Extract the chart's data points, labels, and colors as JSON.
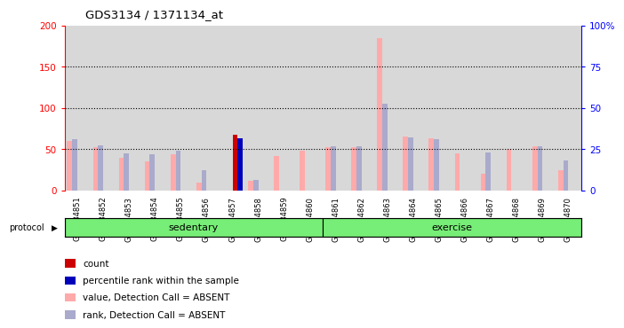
{
  "title": "GDS3134 / 1371134_at",
  "samples": [
    "GSM184851",
    "GSM184852",
    "GSM184853",
    "GSM184854",
    "GSM184855",
    "GSM184856",
    "GSM184857",
    "GSM184858",
    "GSM184859",
    "GSM184860",
    "GSM184861",
    "GSM184862",
    "GSM184863",
    "GSM184864",
    "GSM184865",
    "GSM184866",
    "GSM184867",
    "GSM184868",
    "GSM184869",
    "GSM184870"
  ],
  "protocol_groups": [
    {
      "label": "sedentary",
      "start": 0,
      "end": 10
    },
    {
      "label": "exercise",
      "start": 10,
      "end": 20
    }
  ],
  "value_absent": [
    60,
    52,
    40,
    35,
    44,
    10,
    0,
    12,
    42,
    48,
    52,
    52,
    185,
    65,
    63,
    45,
    20,
    50,
    54,
    25
  ],
  "rank_absent": [
    62,
    55,
    45,
    44,
    48,
    25,
    0,
    13,
    0,
    0,
    54,
    54,
    105,
    64,
    62,
    0,
    46,
    0,
    54,
    36
  ],
  "count": [
    0,
    0,
    0,
    0,
    0,
    0,
    68,
    0,
    0,
    0,
    0,
    0,
    0,
    0,
    0,
    0,
    0,
    0,
    0,
    0
  ],
  "pct_rank": [
    0,
    0,
    0,
    0,
    0,
    0,
    63,
    0,
    0,
    0,
    0,
    0,
    0,
    0,
    0,
    0,
    0,
    0,
    0,
    0
  ],
  "count_color": "#cc0000",
  "pct_rank_color": "#0000bb",
  "value_absent_color": "#ffaaaa",
  "rank_absent_color": "#aaaacc",
  "ylim_left": [
    0,
    200
  ],
  "ylim_right": [
    0,
    100
  ],
  "yticks_left": [
    0,
    50,
    100,
    150,
    200
  ],
  "ytick_labels_left": [
    "0",
    "50",
    "100",
    "150",
    "200"
  ],
  "yticks_right": [
    0,
    25,
    50,
    75,
    100
  ],
  "ytick_labels_right": [
    "0",
    "25",
    "50",
    "75",
    "100%"
  ],
  "hlines": [
    50,
    100,
    150
  ],
  "bg_color": "#ffffff",
  "sample_bg_color": "#d8d8d8",
  "protocol_bg_color": "#77ee77",
  "bar_width": 0.2,
  "legend_items": [
    {
      "label": "count",
      "color": "#cc0000"
    },
    {
      "label": "percentile rank within the sample",
      "color": "#0000bb"
    },
    {
      "label": "value, Detection Call = ABSENT",
      "color": "#ffaaaa"
    },
    {
      "label": "rank, Detection Call = ABSENT",
      "color": "#aaaacc"
    }
  ]
}
